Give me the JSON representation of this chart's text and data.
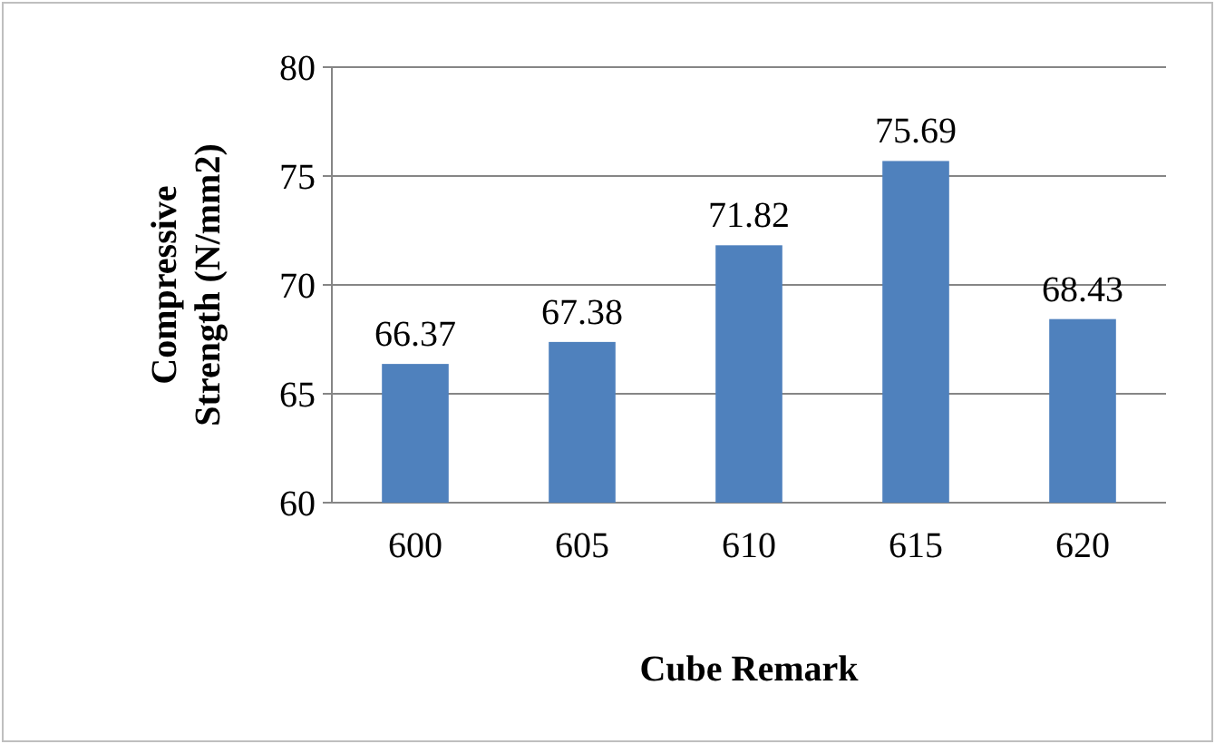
{
  "chart_data": {
    "type": "bar",
    "xlabel": "Cube Remark",
    "ylabel": "Compressive Strength (N/mm2)",
    "categories": [
      "600",
      "605",
      "610",
      "615",
      "620"
    ],
    "values": [
      66.37,
      67.38,
      71.82,
      75.69,
      68.43
    ],
    "color": "#4f81bd",
    "ylim": [
      60,
      80
    ],
    "yticks": [
      60,
      65,
      70,
      75,
      80
    ],
    "grid": "y",
    "data_labels": true
  }
}
